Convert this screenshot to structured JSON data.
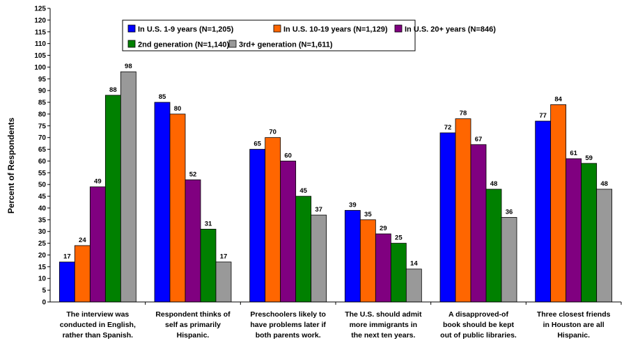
{
  "chart_data": {
    "type": "bar",
    "title": "",
    "xlabel": "",
    "ylabel": "Percent of Respondents",
    "ylim": [
      0,
      125
    ],
    "ytick_step": 5,
    "grid": false,
    "legend_position": "top",
    "categories": [
      [
        "The interview was",
        "conducted in English,",
        "rather than Spanish."
      ],
      [
        "Respondent thinks of",
        "self as primarily",
        "Hispanic."
      ],
      [
        "Preschoolers likely to",
        "have problems later if",
        "both parents work."
      ],
      [
        "The U.S. should admit",
        "more immigrants in",
        "the next ten years."
      ],
      [
        "A disapproved-of",
        "book should be kept",
        "out of public libraries."
      ],
      [
        "Three closest friends",
        "in Houston are all",
        "Hispanic."
      ]
    ],
    "series": [
      {
        "name": "In U.S. 1-9 years (N=1,205)",
        "color": "#0000ff",
        "values": [
          17,
          85,
          65,
          39,
          72,
          77
        ]
      },
      {
        "name": "In U.S. 10-19 years (N=1,129)",
        "color": "#ff6600",
        "values": [
          24,
          80,
          70,
          35,
          78,
          84
        ]
      },
      {
        "name": "In U.S. 20+ years (N=846)",
        "color": "#800080",
        "values": [
          49,
          52,
          60,
          29,
          67,
          61
        ]
      },
      {
        "name": "2nd generation (N=1,140)",
        "color": "#008000",
        "values": [
          88,
          31,
          45,
          25,
          48,
          59
        ]
      },
      {
        "name": "3rd+ generation (N=1,611)",
        "color": "#999999",
        "values": [
          98,
          17,
          37,
          14,
          36,
          48
        ]
      }
    ]
  }
}
